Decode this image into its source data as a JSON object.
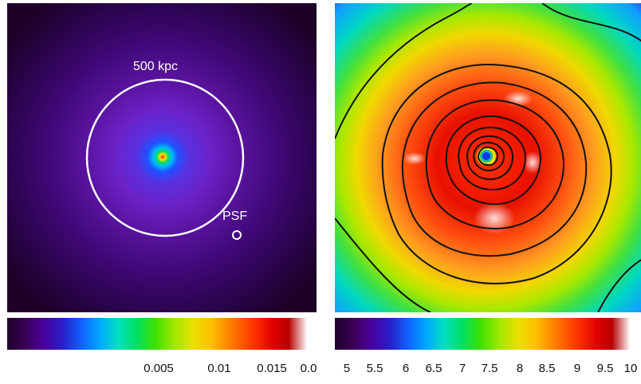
{
  "left_panel": {
    "circle_label": "500 kpc",
    "psf_label": "PSF",
    "colorbar_ticks": [
      "0.005",
      "0.01",
      "0.015",
      "0.0"
    ]
  },
  "right_panel": {
    "colorbar_ticks": [
      "5",
      "5.5",
      "6",
      "6.5",
      "7",
      "7.5",
      "8",
      "8.5",
      "9",
      "9.5",
      "10"
    ]
  },
  "colors": {
    "background_left": "#1e0029",
    "circle_stroke": "#ffffff",
    "contour_stroke": "#111111",
    "hot_core": "#e00000",
    "cool_outer": "#00b8ff"
  }
}
